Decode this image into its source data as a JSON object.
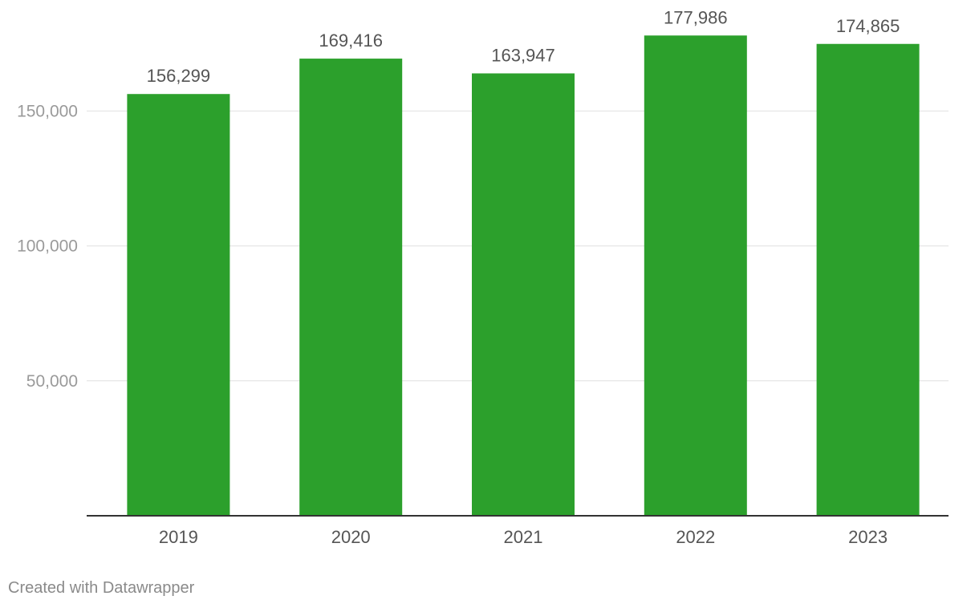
{
  "chart_data": {
    "type": "bar",
    "categories": [
      "2019",
      "2020",
      "2021",
      "2022",
      "2023"
    ],
    "values": [
      156299,
      169416,
      163947,
      177986,
      174865
    ],
    "value_labels": [
      "156,299",
      "169,416",
      "163,947",
      "177,986",
      "174,865"
    ],
    "y_ticks": [
      50000,
      100000,
      150000
    ],
    "y_tick_labels": [
      "50,000",
      "100,000",
      "150,000"
    ],
    "ylim": [
      0,
      190000
    ],
    "grid": true,
    "title": "",
    "xlabel": "",
    "ylabel": ""
  },
  "colors": {
    "bar": "#2ca02c",
    "grid": "#e0e0e0",
    "baseline": "#333333",
    "tick_text": "#9a9a9a",
    "category_text": "#555555",
    "value_text": "#555555"
  },
  "footer": {
    "credit": "Created with Datawrapper"
  }
}
